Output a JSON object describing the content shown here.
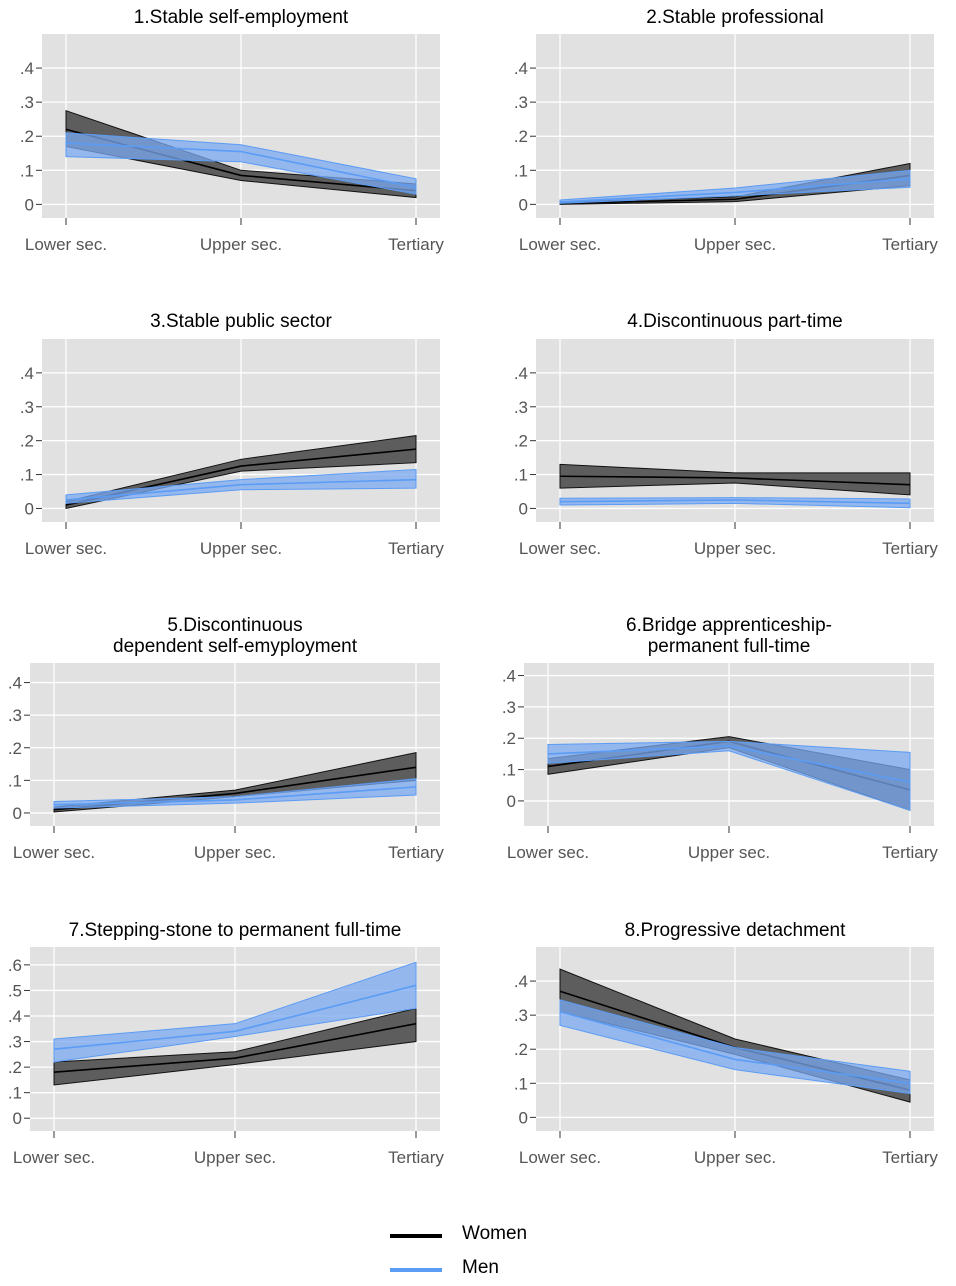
{
  "legend": {
    "items": [
      {
        "label": "Women",
        "color": "#000000"
      },
      {
        "label": "Men",
        "color": "#5b9cf5"
      }
    ]
  },
  "colors": {
    "plot_background": "#e1e1e1",
    "grid": "#ffffff",
    "women_band": "#555555",
    "men_band": "#7aa8f0",
    "men_line": "#5b9cf5",
    "women_line": "#000000",
    "tick_text": "#555555"
  },
  "chart_data": [
    {
      "type": "line",
      "title": [
        "1.Stable self-employment"
      ],
      "categories": [
        "Lower sec.",
        "Upper sec.",
        "Tertiary"
      ],
      "yticks": [
        0,
        0.1,
        0.2,
        0.3,
        0.4
      ],
      "yticklabels": [
        "0",
        ".1",
        ".2",
        ".3",
        ".4"
      ],
      "ylim": [
        -0.04,
        0.5
      ],
      "grid": true,
      "series": [
        {
          "name": "Women",
          "values": [
            0.22,
            0.085,
            0.04
          ],
          "lower": [
            0.17,
            0.07,
            0.02
          ],
          "upper": [
            0.275,
            0.1,
            0.06
          ]
        },
        {
          "name": "Men",
          "values": [
            0.18,
            0.155,
            0.05
          ],
          "lower": [
            0.14,
            0.125,
            0.03
          ],
          "upper": [
            0.21,
            0.175,
            0.075
          ]
        }
      ]
    },
    {
      "type": "line",
      "title": [
        "2.Stable professional"
      ],
      "categories": [
        "Lower sec.",
        "Upper sec.",
        "Tertiary"
      ],
      "yticks": [
        0,
        0.1,
        0.2,
        0.3,
        0.4
      ],
      "yticklabels": [
        "0",
        ".1",
        ".2",
        ".3",
        ".4"
      ],
      "ylim": [
        -0.04,
        0.5
      ],
      "grid": true,
      "series": [
        {
          "name": "Women",
          "values": [
            0.003,
            0.015,
            0.085
          ],
          "lower": [
            0.0,
            0.008,
            0.055
          ],
          "upper": [
            0.007,
            0.022,
            0.12
          ]
        },
        {
          "name": "Men",
          "values": [
            0.007,
            0.035,
            0.075
          ],
          "lower": [
            0.003,
            0.025,
            0.05
          ],
          "upper": [
            0.013,
            0.048,
            0.1
          ]
        }
      ]
    },
    {
      "type": "line",
      "title": [
        "3.Stable public sector"
      ],
      "categories": [
        "Lower sec.",
        "Upper sec.",
        "Tertiary"
      ],
      "yticks": [
        0,
        0.1,
        0.2,
        0.3,
        0.4
      ],
      "yticklabels": [
        "0",
        ".1",
        ".2",
        ".3",
        ".4"
      ],
      "ylim": [
        -0.04,
        0.5
      ],
      "grid": true,
      "series": [
        {
          "name": "Women",
          "values": [
            0.01,
            0.125,
            0.175
          ],
          "lower": [
            0.0,
            0.11,
            0.135
          ],
          "upper": [
            0.02,
            0.145,
            0.215
          ]
        },
        {
          "name": "Men",
          "values": [
            0.025,
            0.07,
            0.085
          ],
          "lower": [
            0.015,
            0.055,
            0.06
          ],
          "upper": [
            0.04,
            0.085,
            0.115
          ]
        }
      ]
    },
    {
      "type": "line",
      "title": [
        "4.Discontinuous part-time"
      ],
      "categories": [
        "Lower sec.",
        "Upper sec.",
        "Tertiary"
      ],
      "yticks": [
        0,
        0.1,
        0.2,
        0.3,
        0.4
      ],
      "yticklabels": [
        "0",
        ".1",
        ".2",
        ".3",
        ".4"
      ],
      "ylim": [
        -0.04,
        0.5
      ],
      "grid": true,
      "series": [
        {
          "name": "Women",
          "values": [
            0.095,
            0.09,
            0.07
          ],
          "lower": [
            0.06,
            0.075,
            0.04
          ],
          "upper": [
            0.13,
            0.105,
            0.105
          ]
        },
        {
          "name": "Men",
          "values": [
            0.02,
            0.025,
            0.015
          ],
          "lower": [
            0.01,
            0.015,
            0.002
          ],
          "upper": [
            0.03,
            0.032,
            0.028
          ]
        }
      ]
    },
    {
      "type": "line",
      "title": [
        "5.Discontinuous",
        "dependent self-emyployment"
      ],
      "categories": [
        "Lower sec.",
        "Upper sec.",
        "Tertiary"
      ],
      "yticks": [
        0,
        0.1,
        0.2,
        0.3,
        0.4
      ],
      "yticklabels": [
        "0",
        ".1",
        ".2",
        ".3",
        ".4"
      ],
      "ylim": [
        -0.04,
        0.46
      ],
      "grid": true,
      "series": [
        {
          "name": "Women",
          "values": [
            0.01,
            0.06,
            0.14
          ],
          "lower": [
            0.003,
            0.05,
            0.1
          ],
          "upper": [
            0.018,
            0.07,
            0.185
          ]
        },
        {
          "name": "Men",
          "values": [
            0.025,
            0.04,
            0.08
          ],
          "lower": [
            0.015,
            0.03,
            0.055
          ],
          "upper": [
            0.035,
            0.05,
            0.105
          ]
        }
      ]
    },
    {
      "type": "line",
      "title": [
        "6.Bridge apprenticeship-",
        "permanent full-time"
      ],
      "categories": [
        "Lower sec.",
        "Upper sec.",
        "Tertiary"
      ],
      "yticks": [
        0,
        0.1,
        0.2,
        0.3,
        0.4
      ],
      "yticklabels": [
        "0",
        ".1",
        ".2",
        ".3",
        ".4"
      ],
      "ylim": [
        -0.08,
        0.44
      ],
      "grid": true,
      "series": [
        {
          "name": "Women",
          "values": [
            0.11,
            0.19,
            0.035
          ],
          "lower": [
            0.085,
            0.17,
            -0.03
          ],
          "upper": [
            0.135,
            0.205,
            0.1
          ]
        },
        {
          "name": "Men",
          "values": [
            0.15,
            0.175,
            0.06
          ],
          "lower": [
            0.12,
            0.16,
            -0.03
          ],
          "upper": [
            0.18,
            0.19,
            0.155
          ]
        }
      ]
    },
    {
      "type": "line",
      "title": [
        "7.Stepping-stone to permanent full-time"
      ],
      "categories": [
        "Lower sec.",
        "Upper sec.",
        "Tertiary"
      ],
      "yticks": [
        0,
        0.1,
        0.2,
        0.3,
        0.4,
        0.5,
        0.6
      ],
      "yticklabels": [
        "0",
        ".1",
        ".2",
        ".3",
        ".4",
        ".5",
        ".6"
      ],
      "ylim": [
        -0.05,
        0.67
      ],
      "grid": true,
      "series": [
        {
          "name": "Women",
          "values": [
            0.18,
            0.235,
            0.37
          ],
          "lower": [
            0.13,
            0.21,
            0.3
          ],
          "upper": [
            0.22,
            0.26,
            0.43
          ]
        },
        {
          "name": "Men",
          "values": [
            0.27,
            0.34,
            0.52
          ],
          "lower": [
            0.22,
            0.32,
            0.43
          ],
          "upper": [
            0.31,
            0.37,
            0.61
          ]
        }
      ]
    },
    {
      "type": "line",
      "title": [
        "8.Progressive detachment"
      ],
      "categories": [
        "Lower sec.",
        "Upper sec.",
        "Tertiary"
      ],
      "yticks": [
        0,
        0.1,
        0.2,
        0.3,
        0.4
      ],
      "yticklabels": [
        "0",
        ".1",
        ".2",
        ".3",
        ".4"
      ],
      "ylim": [
        -0.04,
        0.5
      ],
      "grid": true,
      "series": [
        {
          "name": "Women",
          "values": [
            0.37,
            0.205,
            0.08
          ],
          "lower": [
            0.31,
            0.185,
            0.045
          ],
          "upper": [
            0.435,
            0.23,
            0.11
          ]
        },
        {
          "name": "Men",
          "values": [
            0.31,
            0.17,
            0.1
          ],
          "lower": [
            0.27,
            0.14,
            0.07
          ],
          "upper": [
            0.345,
            0.205,
            0.135
          ]
        }
      ]
    }
  ]
}
